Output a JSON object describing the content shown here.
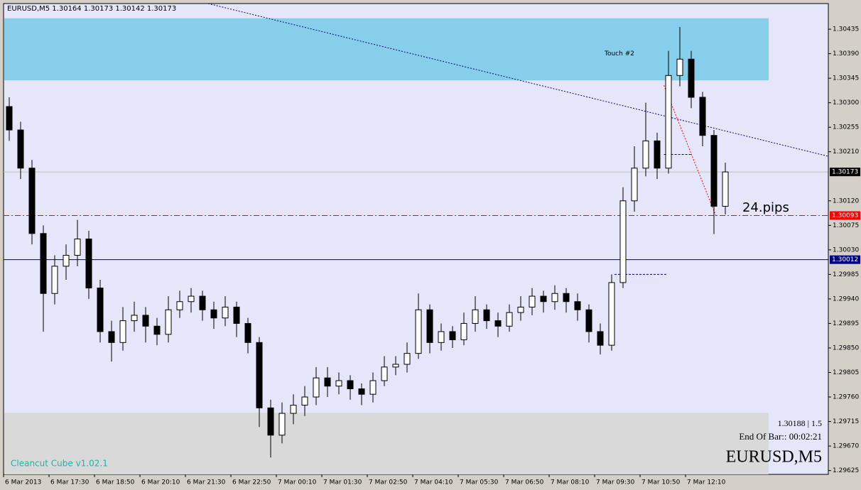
{
  "chart_data": {
    "type": "candlestick",
    "title": "EURUSD,M5  1.30164 1.30173 1.30142 1.30173",
    "categories": [
      "6 Mar 2013",
      null,
      null,
      null,
      "6 Mar 17:30",
      null,
      null,
      null,
      "6 Mar 18:50",
      null,
      null,
      null,
      "6 Mar 20:10",
      null,
      null,
      null,
      "6 Mar 21:30",
      null,
      null,
      null,
      "6 Mar 22:50",
      null,
      null,
      null,
      "7 Mar 00:10",
      null,
      null,
      null,
      "7 Mar 01:30",
      null,
      null,
      null,
      "7 Mar 02:50",
      null,
      null,
      null,
      "7 Mar 04:10",
      null,
      null,
      null,
      "7 Mar 05:30",
      null,
      null,
      null,
      "7 Mar 06:50",
      null,
      null,
      null,
      "7 Mar 08:10",
      null,
      null,
      null,
      "7 Mar 09:30",
      null,
      null,
      null,
      "7 Mar 10:50",
      null,
      null,
      null,
      "7 Mar 12:10",
      null,
      null,
      null
    ],
    "open": [
      1.30293,
      1.3025,
      1.3018,
      1.3006,
      1.2995,
      1.3,
      1.3002,
      1.3005,
      1.2996,
      1.2988,
      1.2986,
      1.299,
      1.2991,
      1.2989,
      1.29875,
      1.2992,
      1.29935,
      1.29945,
      1.2992,
      1.29905,
      1.29925,
      1.29895,
      1.2986,
      1.2974,
      1.2969,
      1.2973,
      1.29745,
      1.2976,
      1.29795,
      1.2978,
      1.2979,
      1.29775,
      1.29765,
      1.2979,
      1.29815,
      1.2982,
      1.2984,
      1.2992,
      1.2986,
      1.2988,
      1.29865,
      1.29895,
      1.2992,
      1.299,
      1.2989,
      1.29915,
      1.29925,
      1.29945,
      1.29935,
      1.2995,
      1.29935,
      1.2992,
      1.2988,
      1.29855,
      1.2997,
      1.3012,
      1.3018,
      1.3023,
      1.3018,
      1.3035,
      1.3038,
      1.3031,
      1.3024,
      1.3011
    ],
    "high": [
      1.3031,
      1.30265,
      1.30195,
      1.30075,
      1.3002,
      1.3004,
      1.30085,
      1.30065,
      1.29975,
      1.299,
      1.29925,
      1.29935,
      1.29925,
      1.29905,
      1.29945,
      1.29955,
      1.2996,
      1.29955,
      1.29935,
      1.29945,
      1.29935,
      1.29905,
      1.2987,
      1.29755,
      1.2975,
      1.29765,
      1.2978,
      1.29815,
      1.29815,
      1.29805,
      1.298,
      1.29785,
      1.29805,
      1.29835,
      1.29835,
      1.2986,
      1.2995,
      1.2993,
      1.29895,
      1.2989,
      1.29915,
      1.29945,
      1.2993,
      1.29915,
      1.2993,
      1.29945,
      1.2996,
      1.29955,
      1.29965,
      1.2996,
      1.2995,
      1.2993,
      1.29895,
      1.29985,
      1.30145,
      1.3022,
      1.303,
      1.30245,
      1.30395,
      1.30439,
      1.30395,
      1.3032,
      1.3025,
      1.3019
    ],
    "low": [
      1.3023,
      1.3016,
      1.3004,
      1.2988,
      1.2993,
      1.29975,
      1.3,
      1.2994,
      1.2986,
      1.29825,
      1.29845,
      1.2988,
      1.2986,
      1.29855,
      1.2986,
      1.29905,
      1.29915,
      1.299,
      1.29885,
      1.2989,
      1.2987,
      1.2984,
      1.29705,
      1.29649,
      1.29675,
      1.2971,
      1.29725,
      1.29745,
      1.2976,
      1.29765,
      1.29755,
      1.29745,
      1.2975,
      1.2978,
      1.298,
      1.29805,
      1.2983,
      1.2984,
      1.29845,
      1.2985,
      1.29855,
      1.2988,
      1.29885,
      1.2987,
      1.2988,
      1.299,
      1.2991,
      1.29915,
      1.2992,
      1.29915,
      1.299,
      1.2986,
      1.29838,
      1.29845,
      1.2996,
      1.301,
      1.30165,
      1.3016,
      1.3017,
      1.3033,
      1.3029,
      1.3022,
      1.30059,
      1.30095
    ],
    "close": [
      1.3025,
      1.3018,
      1.3006,
      1.2995,
      1.3,
      1.3002,
      1.3005,
      1.2996,
      1.2988,
      1.2986,
      1.299,
      1.2991,
      1.2989,
      1.29875,
      1.2992,
      1.29935,
      1.29945,
      1.2992,
      1.29905,
      1.29925,
      1.29895,
      1.2986,
      1.2974,
      1.2969,
      1.2973,
      1.29745,
      1.2976,
      1.29795,
      1.2978,
      1.2979,
      1.29775,
      1.29765,
      1.2979,
      1.29815,
      1.2982,
      1.2984,
      1.2992,
      1.2986,
      1.2988,
      1.29865,
      1.29895,
      1.2992,
      1.299,
      1.2989,
      1.29915,
      1.29925,
      1.29945,
      1.29935,
      1.2995,
      1.29935,
      1.2992,
      1.2988,
      1.29855,
      1.2997,
      1.3012,
      1.3018,
      1.3023,
      1.3018,
      1.3035,
      1.3038,
      1.3031,
      1.3024,
      1.3011,
      1.30173
    ],
    "up_color": "#ffffff",
    "down_color": "#000000",
    "background": "#e6e6fa",
    "ylim": [
      1.29618,
      1.30482
    ],
    "yticks": [
      1.30435,
      {
        "value": 1.3039,
        "label": "1.30390"
      },
      1.30345,
      {
        "value": 1.303,
        "label": "1.30300"
      },
      1.30255,
      {
        "value": 1.3021,
        "label": "1.30210"
      },
      {
        "value": 1.3012,
        "label": "1.30120"
      },
      1.30075,
      {
        "value": 1.3003,
        "label": "1.30030"
      },
      1.29985,
      {
        "value": 1.2994,
        "label": "1.29940"
      },
      1.29895,
      {
        "value": 1.2985,
        "label": "1.29850"
      },
      1.29805,
      {
        "value": 1.2976,
        "label": "1.29760"
      },
      1.29715,
      {
        "value": 1.2967,
        "label": "1.29670"
      },
      1.29625
    ],
    "price_lines": [
      {
        "value": 1.30173,
        "line_color": "#c0c0c0",
        "box_color": "#000000",
        "dash": "none"
      },
      {
        "value": 1.30093,
        "line_color": "#ff0000",
        "box_color": "#ff0000",
        "dash": "8,3,2,3"
      },
      {
        "value": 1.30012,
        "line_color": "#000080",
        "box_color": "#000080",
        "dash": "none"
      }
    ],
    "zones": [
      {
        "top": 1.30455,
        "bottom": 1.30341,
        "color": "#87ceeb",
        "label": "Touch #2"
      },
      {
        "top": 1.29731,
        "bottom": 1.29618,
        "color": "#d9d9d9"
      }
    ],
    "trend_lines": [
      {
        "x": [
          17.5,
          72
        ],
        "y": [
          1.30482,
          1.30202
        ],
        "color": "#000080",
        "dash": "2,2"
      },
      {
        "x": [
          57.6,
          62.2
        ],
        "y": [
          1.30332,
          1.30091
        ],
        "color": "#ff0000",
        "dash": "2,2"
      },
      {
        "x": [
          53.25,
          57.9
        ],
        "y": [
          1.29985,
          1.29985
        ],
        "color": "#000080",
        "dash": "3,2"
      },
      {
        "x": [
          57.6,
          60.1
        ],
        "y": [
          1.30205,
          1.30205
        ],
        "color": "#000080",
        "dash": "3,2"
      }
    ],
    "annotations": {
      "pips": "24.pips",
      "indicator": "Cleancut Cube v1.02.1",
      "spread": "1.30188 | 1.5",
      "timer": "End Of Bar:: 00:02:21",
      "symbol": "EURUSD,M5"
    }
  }
}
